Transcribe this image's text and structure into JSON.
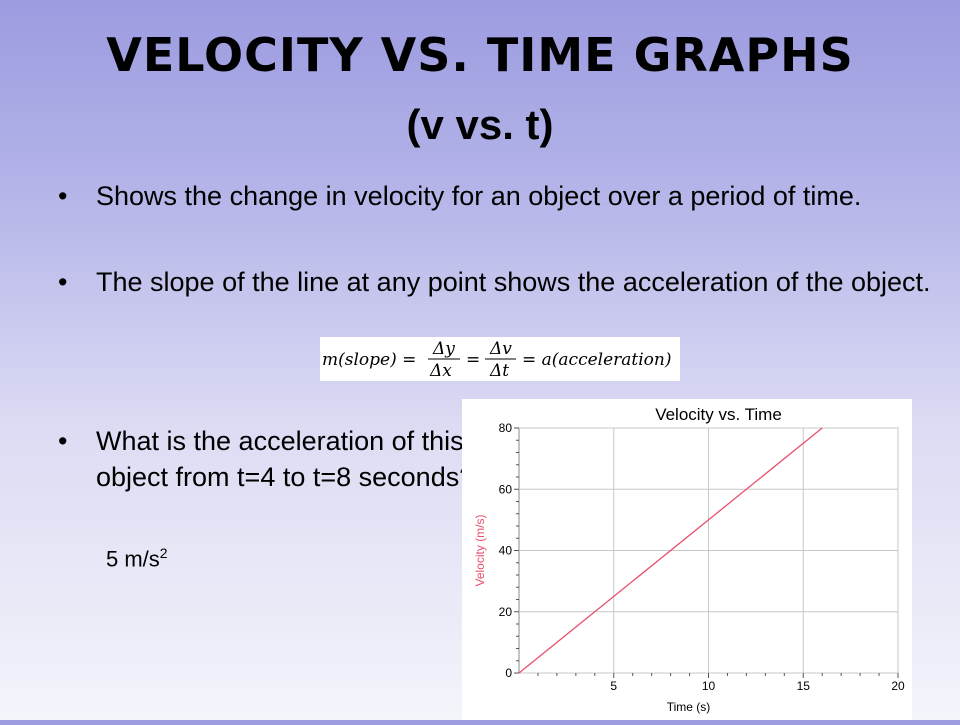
{
  "slide": {
    "title": "Velocity vs. Time Graphs",
    "subtitle": "(v vs. t)",
    "bullets": [
      "Shows the change in velocity for an object over a period of time.",
      "The slope of the line at any point shows the acceleration of the object.",
      "What is the acceleration of this object from t=4 to t=8 seconds?"
    ],
    "formula": {
      "lhs": "m(slope) =",
      "frac1_num": "Δy",
      "frac1_den": "Δx",
      "eq1": "=",
      "frac2_num": "Δv",
      "frac2_den": "Δt",
      "rhs": "= a(acceleration)"
    },
    "answer_value": "5 m/s",
    "answer_exp": "2"
  },
  "chart_data": {
    "type": "line",
    "title": "Velocity vs. Time",
    "xlabel": "Time (s)",
    "ylabel": "Velocity (m/s)",
    "xlim": [
      0,
      20
    ],
    "ylim": [
      0,
      80
    ],
    "xticks": [
      5,
      10,
      15,
      20
    ],
    "yticks": [
      0,
      20,
      40,
      60,
      80
    ],
    "grid": true,
    "series": [
      {
        "x": [
          0,
          16
        ],
        "y": [
          0,
          80
        ],
        "color": "#e8506e"
      }
    ]
  }
}
